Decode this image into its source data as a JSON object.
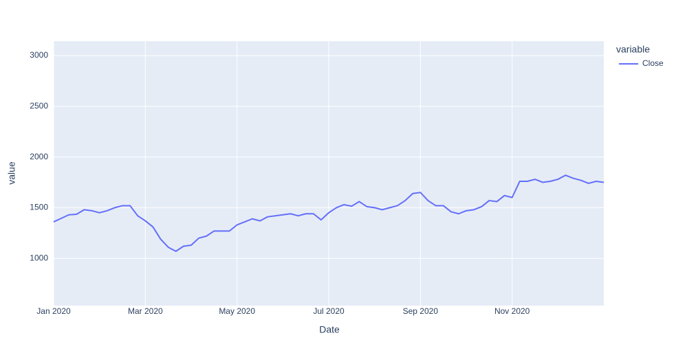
{
  "chart_data": {
    "type": "line",
    "xlabel": "Date",
    "ylabel": "value",
    "legend_title": "variable",
    "categories": [
      "Jan 2020",
      null,
      null,
      null,
      null,
      null,
      null,
      null,
      null,
      null,
      null,
      null,
      "Mar 2020",
      null,
      null,
      null,
      null,
      null,
      null,
      null,
      null,
      null,
      null,
      null,
      "May 2020",
      null,
      null,
      null,
      null,
      null,
      null,
      null,
      null,
      null,
      null,
      null,
      "Jul 2020",
      null,
      null,
      null,
      null,
      null,
      null,
      null,
      null,
      null,
      null,
      null,
      "Sep 2020",
      null,
      null,
      null,
      null,
      null,
      null,
      null,
      null,
      null,
      null,
      null,
      "Nov 2020",
      null,
      null,
      null,
      null,
      null,
      null,
      null,
      null,
      null,
      null,
      null,
      null
    ],
    "series": [
      {
        "name": "Close",
        "color": "#636efa",
        "values": [
          1360,
          1395,
          1430,
          1435,
          1480,
          1470,
          1450,
          1470,
          1500,
          1520,
          1520,
          1420,
          1370,
          1310,
          1190,
          1110,
          1070,
          1120,
          1130,
          1200,
          1220,
          1270,
          1270,
          1270,
          1330,
          1360,
          1390,
          1370,
          1410,
          1420,
          1430,
          1440,
          1420,
          1440,
          1440,
          1380,
          1450,
          1500,
          1530,
          1515,
          1560,
          1510,
          1500,
          1480,
          1500,
          1520,
          1570,
          1640,
          1650,
          1570,
          1520,
          1520,
          1460,
          1440,
          1470,
          1480,
          1510,
          1570,
          1560,
          1620,
          1600,
          1760,
          1760,
          1780,
          1750,
          1760,
          1780,
          1820,
          1790,
          1770,
          1740,
          1760,
          1750
        ]
      }
    ],
    "ylim": [
      534,
      3142
    ],
    "yticks": [
      1000,
      1500,
      2000,
      2500,
      3000
    ],
    "grid": true
  }
}
